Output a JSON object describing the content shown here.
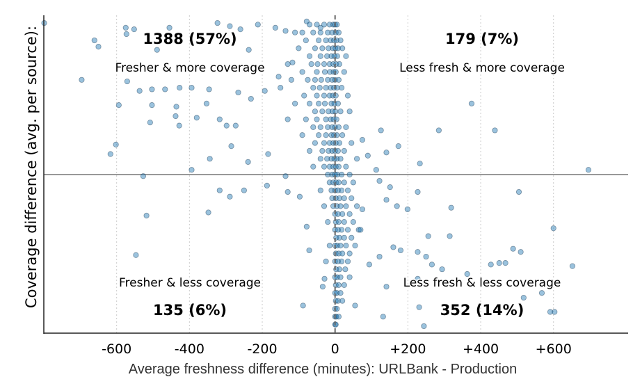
{
  "chart_data": {
    "type": "scatter",
    "title": "",
    "xlabel": "Average freshness difference (minutes): URLBank - Production",
    "ylabel": "Coverage difference (avg. per source):",
    "xlim": [
      -800,
      805
    ],
    "ylim": [
      -1,
      1
    ],
    "x_ticks": [
      -600,
      -400,
      -200,
      0,
      200,
      400,
      600
    ],
    "x_tick_labels": [
      "-600",
      "-400",
      "-200",
      "0",
      "+200",
      "+400",
      "+600"
    ],
    "y_ticks_shown": false,
    "grid": "vertical dotted at x ticks",
    "reference_lines": {
      "x0": "dashed vertical",
      "y0": "solid horizontal"
    },
    "marker_color": "#1f77b4",
    "marker_edge_color": "#0b2a45",
    "quadrants": {
      "top_left": {
        "count": "1388 (57%)",
        "label": "Fresher & more coverage"
      },
      "top_right": {
        "count": "179 (7%)",
        "label": "Less fresh & more coverage"
      },
      "bottom_left": {
        "count": "135 (6%)",
        "label": "Fresher & less coverage"
      },
      "bottom_right": {
        "count": "352 (14%)",
        "label": "Less fresh & less coverage"
      }
    },
    "points": [
      [
        -799,
        0.96
      ],
      [
        -575,
        0.93
      ],
      [
        -552,
        0.92
      ],
      [
        -661,
        0.85
      ],
      [
        -650,
        0.81
      ],
      [
        -573,
        0.89
      ],
      [
        -455,
        0.93
      ],
      [
        -323,
        0.96
      ],
      [
        -489,
        0.79
      ],
      [
        -696,
        0.6
      ],
      [
        -571,
        0.59
      ],
      [
        -594,
        0.44
      ],
      [
        -537,
        0.53
      ],
      [
        -503,
        0.54
      ],
      [
        -467,
        0.54
      ],
      [
        -427,
        0.55
      ],
      [
        -394,
        0.55
      ],
      [
        -346,
        0.54
      ],
      [
        -503,
        0.44
      ],
      [
        -436,
        0.43
      ],
      [
        -428,
        0.31
      ],
      [
        -508,
        0.33
      ],
      [
        -438,
        0.37
      ],
      [
        -380,
        0.36
      ],
      [
        -317,
        0.35
      ],
      [
        -298,
        0.31
      ],
      [
        -602,
        0.19
      ],
      [
        -617,
        0.13
      ],
      [
        -394,
        0.03
      ],
      [
        -344,
        0.1
      ],
      [
        -285,
        0.18
      ],
      [
        -239,
        0.08
      ],
      [
        -184,
        0.13
      ],
      [
        -273,
        0.31
      ],
      [
        -353,
        0.45
      ],
      [
        -266,
        0.52
      ],
      [
        -231,
        0.48
      ],
      [
        -193,
        0.53
      ],
      [
        -155,
        0.62
      ],
      [
        -117,
        0.71
      ],
      [
        -527,
        -0.01
      ],
      [
        -317,
        -0.1
      ],
      [
        -289,
        -0.14
      ],
      [
        -250,
        -0.1
      ],
      [
        -348,
        -0.24
      ],
      [
        -518,
        -0.26
      ],
      [
        -547,
        -0.51
      ],
      [
        -187,
        -0.07
      ],
      [
        -136,
        -0.01
      ],
      [
        -130,
        -0.11
      ],
      [
        -97,
        -0.14
      ],
      [
        -88,
        -0.83
      ],
      [
        -78,
        -0.33
      ],
      [
        -71,
        -0.48
      ],
      [
        -34,
        -0.71
      ],
      [
        -29,
        -0.66
      ],
      [
        -289,
        0.94
      ],
      [
        -260,
        0.92
      ],
      [
        -237,
        0.79
      ],
      [
        -212,
        0.95
      ],
      [
        -164,
        0.93
      ],
      [
        -136,
        0.91
      ],
      [
        -78,
        0.97
      ],
      [
        -40,
        0.93
      ],
      [
        696,
        0.03
      ],
      [
        375,
        0.45
      ],
      [
        285,
        0.28
      ],
      [
        439,
        0.28
      ],
      [
        233,
        0.07
      ],
      [
        174,
        0.18
      ],
      [
        126,
        0.28
      ],
      [
        141,
        0.14
      ],
      [
        113,
        0.03
      ],
      [
        151,
        -0.08
      ],
      [
        227,
        -0.11
      ],
      [
        319,
        -0.21
      ],
      [
        256,
        -0.39
      ],
      [
        315,
        -0.39
      ],
      [
        227,
        -0.49
      ],
      [
        250,
        -0.52
      ],
      [
        294,
        -0.6
      ],
      [
        505,
        -0.11
      ],
      [
        600,
        -0.34
      ],
      [
        489,
        -0.47
      ],
      [
        510,
        -0.49
      ],
      [
        428,
        -0.57
      ],
      [
        451,
        -0.56
      ],
      [
        468,
        -0.56
      ],
      [
        652,
        -0.58
      ],
      [
        231,
        -0.84
      ],
      [
        227,
        -0.66
      ],
      [
        132,
        -0.9
      ],
      [
        141,
        -0.71
      ],
      [
        244,
        -0.96
      ],
      [
        266,
        -0.57
      ],
      [
        363,
        -0.63
      ],
      [
        518,
        -0.78
      ],
      [
        568,
        -0.75
      ],
      [
        591,
        -0.87
      ],
      [
        603,
        -0.87
      ],
      [
        141,
        -0.16
      ],
      [
        170,
        -0.2
      ],
      [
        199,
        -0.22
      ],
      [
        55,
        -0.83
      ],
      [
        94,
        -0.57
      ],
      [
        122,
        -0.52
      ],
      [
        160,
        -0.46
      ],
      [
        180,
        -0.48
      ],
      [
        65,
        -0.35
      ],
      [
        75,
        -0.22
      ],
      [
        122,
        -0.04
      ],
      [
        90,
        0.12
      ],
      [
        75,
        0.22
      ],
      [
        -30,
        0.95
      ],
      [
        -15,
        0.95
      ],
      [
        -5,
        0.95
      ],
      [
        0,
        0.95
      ],
      [
        5,
        0.95
      ],
      [
        -50,
        0.95
      ],
      [
        -70,
        0.95
      ],
      [
        -60,
        0.9
      ],
      [
        -40,
        0.9
      ],
      [
        -20,
        0.9
      ],
      [
        -8,
        0.9
      ],
      [
        2,
        0.9
      ],
      [
        10,
        0.9
      ],
      [
        -90,
        0.9
      ],
      [
        -110,
        0.9
      ],
      [
        -45,
        0.85
      ],
      [
        -25,
        0.85
      ],
      [
        -12,
        0.85
      ],
      [
        -3,
        0.85
      ],
      [
        4,
        0.85
      ],
      [
        15,
        0.85
      ],
      [
        -80,
        0.85
      ],
      [
        -55,
        0.8
      ],
      [
        -35,
        0.8
      ],
      [
        -18,
        0.8
      ],
      [
        -6,
        0.8
      ],
      [
        1,
        0.8
      ],
      [
        8,
        0.8
      ],
      [
        -100,
        0.8
      ],
      [
        20,
        0.8
      ],
      [
        -40,
        0.75
      ],
      [
        -22,
        0.75
      ],
      [
        -10,
        0.75
      ],
      [
        -2,
        0.75
      ],
      [
        6,
        0.75
      ],
      [
        -70,
        0.75
      ],
      [
        30,
        0.75
      ],
      [
        -65,
        0.7
      ],
      [
        -48,
        0.7
      ],
      [
        -30,
        0.7
      ],
      [
        -15,
        0.7
      ],
      [
        -5,
        0.7
      ],
      [
        3,
        0.7
      ],
      [
        12,
        0.7
      ],
      [
        -130,
        0.7
      ],
      [
        -50,
        0.65
      ],
      [
        -28,
        0.65
      ],
      [
        -14,
        0.65
      ],
      [
        -4,
        0.65
      ],
      [
        2,
        0.65
      ],
      [
        25,
        0.65
      ],
      [
        -90,
        0.65
      ],
      [
        -75,
        0.6
      ],
      [
        -55,
        0.6
      ],
      [
        -38,
        0.6
      ],
      [
        -20,
        0.6
      ],
      [
        -8,
        0.6
      ],
      [
        0,
        0.6
      ],
      [
        10,
        0.6
      ],
      [
        -120,
        0.6
      ],
      [
        -60,
        0.55
      ],
      [
        -42,
        0.55
      ],
      [
        -25,
        0.55
      ],
      [
        -12,
        0.55
      ],
      [
        -3,
        0.55
      ],
      [
        5,
        0.55
      ],
      [
        18,
        0.55
      ],
      [
        -150,
        0.55
      ],
      [
        -85,
        0.5
      ],
      [
        -50,
        0.5
      ],
      [
        -30,
        0.5
      ],
      [
        -15,
        0.5
      ],
      [
        -6,
        0.5
      ],
      [
        2,
        0.5
      ],
      [
        35,
        0.5
      ],
      [
        -70,
        0.45
      ],
      [
        -45,
        0.45
      ],
      [
        -28,
        0.45
      ],
      [
        -10,
        0.45
      ],
      [
        -2,
        0.45
      ],
      [
        8,
        0.45
      ],
      [
        -110,
        0.45
      ],
      [
        -55,
        0.4
      ],
      [
        -35,
        0.4
      ],
      [
        -18,
        0.4
      ],
      [
        -7,
        0.4
      ],
      [
        1,
        0.4
      ],
      [
        15,
        0.4
      ],
      [
        40,
        0.4
      ],
      [
        -80,
        0.35
      ],
      [
        -50,
        0.35
      ],
      [
        -25,
        0.35
      ],
      [
        -12,
        0.35
      ],
      [
        -4,
        0.35
      ],
      [
        4,
        0.35
      ],
      [
        -130,
        0.35
      ],
      [
        -60,
        0.3
      ],
      [
        -40,
        0.3
      ],
      [
        -20,
        0.3
      ],
      [
        -8,
        0.3
      ],
      [
        0,
        0.3
      ],
      [
        10,
        0.3
      ],
      [
        30,
        0.3
      ],
      [
        -45,
        0.25
      ],
      [
        -25,
        0.25
      ],
      [
        -10,
        0.25
      ],
      [
        -3,
        0.25
      ],
      [
        5,
        0.25
      ],
      [
        20,
        0.25
      ],
      [
        -90,
        0.25
      ],
      [
        -55,
        0.2
      ],
      [
        -30,
        0.2
      ],
      [
        -15,
        0.2
      ],
      [
        -5,
        0.2
      ],
      [
        2,
        0.2
      ],
      [
        12,
        0.2
      ],
      [
        45,
        0.2
      ],
      [
        -35,
        0.15
      ],
      [
        -18,
        0.15
      ],
      [
        -8,
        0.15
      ],
      [
        0,
        0.15
      ],
      [
        8,
        0.15
      ],
      [
        25,
        0.15
      ],
      [
        -70,
        0.15
      ],
      [
        -40,
        0.1
      ],
      [
        -22,
        0.1
      ],
      [
        -10,
        0.1
      ],
      [
        -2,
        0.1
      ],
      [
        5,
        0.1
      ],
      [
        15,
        0.1
      ],
      [
        60,
        0.1
      ],
      [
        -30,
        0.05
      ],
      [
        -15,
        0.05
      ],
      [
        -5,
        0.05
      ],
      [
        2,
        0.05
      ],
      [
        10,
        0.05
      ],
      [
        30,
        0.05
      ],
      [
        -60,
        0.05
      ],
      [
        -20,
        0.0
      ],
      [
        -8,
        0.0
      ],
      [
        0,
        0.0
      ],
      [
        6,
        0.0
      ],
      [
        18,
        0.0
      ],
      [
        40,
        0.0
      ],
      [
        -15,
        -0.05
      ],
      [
        -5,
        -0.05
      ],
      [
        3,
        -0.05
      ],
      [
        10,
        -0.05
      ],
      [
        25,
        -0.05
      ],
      [
        50,
        -0.05
      ],
      [
        -10,
        -0.1
      ],
      [
        0,
        -0.1
      ],
      [
        8,
        -0.1
      ],
      [
        18,
        -0.1
      ],
      [
        35,
        -0.1
      ],
      [
        -40,
        -0.1
      ],
      [
        -8,
        -0.15
      ],
      [
        2,
        -0.15
      ],
      [
        12,
        -0.15
      ],
      [
        25,
        -0.15
      ],
      [
        45,
        -0.15
      ],
      [
        -5,
        -0.2
      ],
      [
        5,
        -0.2
      ],
      [
        15,
        -0.2
      ],
      [
        30,
        -0.2
      ],
      [
        60,
        -0.2
      ],
      [
        -30,
        -0.2
      ],
      [
        0,
        -0.25
      ],
      [
        8,
        -0.25
      ],
      [
        20,
        -0.25
      ],
      [
        40,
        -0.25
      ],
      [
        2,
        -0.3
      ],
      [
        10,
        -0.3
      ],
      [
        25,
        -0.3
      ],
      [
        50,
        -0.3
      ],
      [
        -20,
        -0.3
      ],
      [
        0,
        -0.35
      ],
      [
        8,
        -0.35
      ],
      [
        18,
        -0.35
      ],
      [
        35,
        -0.35
      ],
      [
        70,
        -0.35
      ],
      [
        3,
        -0.4
      ],
      [
        12,
        -0.4
      ],
      [
        25,
        -0.4
      ],
      [
        45,
        -0.4
      ],
      [
        0,
        -0.45
      ],
      [
        6,
        -0.45
      ],
      [
        15,
        -0.45
      ],
      [
        30,
        -0.45
      ],
      [
        55,
        -0.45
      ],
      [
        -15,
        -0.45
      ],
      [
        2,
        -0.5
      ],
      [
        10,
        -0.5
      ],
      [
        20,
        -0.5
      ],
      [
        40,
        -0.5
      ],
      [
        0,
        -0.55
      ],
      [
        8,
        -0.55
      ],
      [
        18,
        -0.55
      ],
      [
        35,
        -0.55
      ],
      [
        -25,
        -0.55
      ],
      [
        3,
        -0.6
      ],
      [
        12,
        -0.6
      ],
      [
        28,
        -0.6
      ],
      [
        0,
        -0.65
      ],
      [
        6,
        -0.65
      ],
      [
        15,
        -0.65
      ],
      [
        40,
        -0.65
      ],
      [
        2,
        -0.7
      ],
      [
        10,
        -0.7
      ],
      [
        25,
        -0.7
      ],
      [
        0,
        -0.75
      ],
      [
        5,
        -0.75
      ],
      [
        15,
        -0.75
      ],
      [
        2,
        -0.8
      ],
      [
        8,
        -0.8
      ],
      [
        20,
        -0.8
      ],
      [
        0,
        -0.85
      ],
      [
        5,
        -0.85
      ],
      [
        0,
        -0.9
      ],
      [
        3,
        -0.9
      ],
      [
        10,
        -0.9
      ],
      [
        0,
        -0.95
      ],
      [
        2,
        -0.95
      ]
    ]
  }
}
